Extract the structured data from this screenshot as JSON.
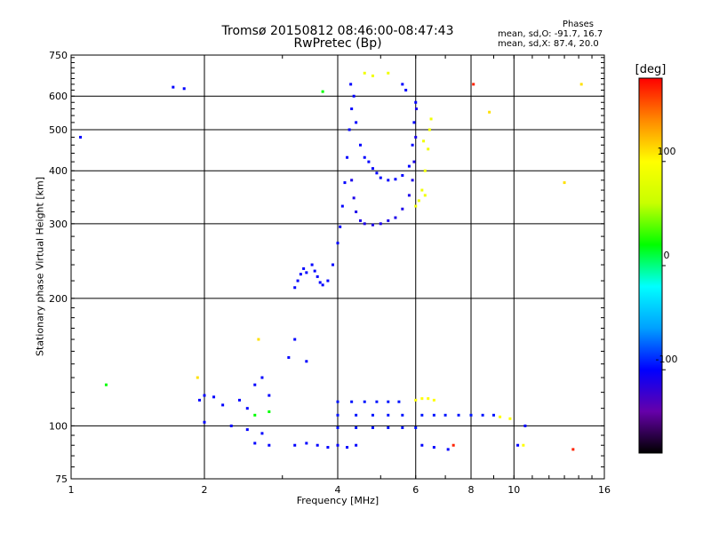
{
  "chart_data": {
    "type": "scatter",
    "title": "Tromsø 20150812 08:46:00-08:47:43",
    "subtitle": "RwPretec (Bp)",
    "stats": {
      "heading": "Phases",
      "o_line": "mean, sd,O: -91.7, 16.7",
      "x_line": "mean, sd,X:  87.4, 20.0"
    },
    "xlabel": "Frequency [MHz]",
    "ylabel": "Stationary phase Virtual Height [km]",
    "x_scale": "log",
    "y_scale": "log",
    "xlim": [
      1,
      16
    ],
    "ylim": [
      75,
      750
    ],
    "x_ticks": [
      1,
      2,
      4,
      6,
      8,
      10,
      16
    ],
    "y_ticks": [
      75,
      100,
      200,
      300,
      400,
      500,
      600,
      750
    ],
    "x_gridlines": [
      2,
      4,
      6,
      8,
      10
    ],
    "y_gridlines": [
      100,
      200,
      300,
      400,
      500,
      600
    ],
    "grid": true,
    "colorbar": {
      "label": "[deg]",
      "range": [
        -180,
        180
      ],
      "ticks": [
        100,
        0,
        -100
      ],
      "colors": [
        "#000000",
        "#6600aa",
        "#0000ff",
        "#00a0ff",
        "#00ffff",
        "#00ff00",
        "#c8ff00",
        "#ffff00",
        "#ff8800",
        "#ff0000"
      ]
    },
    "series": [
      {
        "phase": -100,
        "points": [
          [
            3.2,
            212
          ],
          [
            3.25,
            220
          ],
          [
            3.3,
            228
          ],
          [
            3.35,
            235
          ],
          [
            3.4,
            230
          ],
          [
            3.5,
            240
          ],
          [
            3.55,
            232
          ],
          [
            3.6,
            225
          ],
          [
            3.65,
            218
          ],
          [
            3.7,
            215
          ],
          [
            3.8,
            220
          ],
          [
            3.9,
            240
          ],
          [
            4.0,
            270
          ],
          [
            4.05,
            295
          ],
          [
            4.1,
            330
          ],
          [
            4.15,
            375
          ],
          [
            4.2,
            430
          ],
          [
            4.25,
            500
          ],
          [
            4.3,
            560
          ],
          [
            4.28,
            640
          ],
          [
            4.35,
            600
          ],
          [
            4.4,
            520
          ],
          [
            4.5,
            460
          ],
          [
            4.6,
            430
          ],
          [
            4.7,
            420
          ],
          [
            4.8,
            405
          ],
          [
            4.9,
            395
          ],
          [
            5.0,
            385
          ],
          [
            5.2,
            380
          ],
          [
            5.4,
            382
          ],
          [
            5.6,
            390
          ],
          [
            5.8,
            410
          ],
          [
            5.9,
            460
          ],
          [
            5.95,
            520
          ],
          [
            6.0,
            580
          ],
          [
            5.7,
            620
          ],
          [
            5.6,
            640
          ]
        ]
      },
      {
        "phase": -110,
        "points": [
          [
            4.3,
            380
          ],
          [
            4.35,
            345
          ],
          [
            4.4,
            320
          ],
          [
            4.5,
            305
          ],
          [
            4.6,
            300
          ],
          [
            4.8,
            298
          ],
          [
            5.0,
            300
          ],
          [
            5.2,
            305
          ],
          [
            5.4,
            310
          ],
          [
            5.6,
            325
          ],
          [
            5.8,
            350
          ],
          [
            5.9,
            380
          ],
          [
            5.95,
            420
          ],
          [
            6.0,
            480
          ],
          [
            6.02,
            560
          ]
        ]
      },
      {
        "phase": 90,
        "points": [
          [
            6.0,
            330
          ],
          [
            6.1,
            340
          ],
          [
            6.2,
            360
          ],
          [
            6.3,
            400
          ],
          [
            6.4,
            450
          ],
          [
            6.45,
            500
          ],
          [
            6.5,
            530
          ],
          [
            6.3,
            350
          ],
          [
            6.25,
            470
          ],
          [
            4.6,
            680
          ],
          [
            4.8,
            670
          ],
          [
            5.2,
            680
          ]
        ]
      },
      {
        "phase": -100,
        "points": [
          [
            1.95,
            115
          ],
          [
            2.0,
            118
          ],
          [
            2.1,
            117
          ],
          [
            2.2,
            112
          ],
          [
            2.4,
            115
          ],
          [
            2.5,
            110
          ],
          [
            2.6,
            125
          ],
          [
            2.7,
            130
          ],
          [
            2.8,
            118
          ],
          [
            3.1,
            145
          ],
          [
            3.2,
            160
          ],
          [
            3.4,
            142
          ],
          [
            2.0,
            102
          ],
          [
            2.3,
            100
          ],
          [
            2.5,
            98
          ],
          [
            2.7,
            96
          ]
        ]
      },
      {
        "phase": -100,
        "points": [
          [
            3.2,
            90
          ],
          [
            3.4,
            91
          ],
          [
            3.6,
            90
          ],
          [
            3.8,
            89
          ],
          [
            4.0,
            90
          ],
          [
            4.2,
            89
          ],
          [
            4.4,
            90
          ],
          [
            2.8,
            90
          ],
          [
            2.6,
            91
          ]
        ]
      },
      {
        "phase": -95,
        "points": [
          [
            4.0,
            114
          ],
          [
            4.3,
            114
          ],
          [
            4.6,
            114
          ],
          [
            4.9,
            114
          ],
          [
            5.2,
            114
          ],
          [
            5.5,
            114
          ],
          [
            4.0,
            106
          ],
          [
            4.4,
            106
          ],
          [
            4.8,
            106
          ],
          [
            5.2,
            106
          ],
          [
            5.6,
            106
          ],
          [
            6.2,
            106
          ],
          [
            6.6,
            106
          ],
          [
            7.0,
            106
          ],
          [
            7.5,
            106
          ],
          [
            8.0,
            106
          ],
          [
            8.5,
            106
          ],
          [
            9.0,
            106
          ],
          [
            4.0,
            99
          ],
          [
            4.4,
            99
          ],
          [
            4.8,
            99
          ],
          [
            5.2,
            99
          ],
          [
            5.6,
            99
          ],
          [
            6.0,
            99
          ]
        ]
      },
      {
        "phase": 100,
        "points": [
          [
            6.0,
            115
          ],
          [
            6.2,
            116
          ],
          [
            6.4,
            116
          ],
          [
            6.6,
            115
          ],
          [
            9.3,
            105
          ],
          [
            9.8,
            104
          ],
          [
            10.5,
            90
          ]
        ]
      },
      {
        "phase": -100,
        "points": [
          [
            1.05,
            480
          ],
          [
            1.7,
            630
          ],
          [
            1.8,
            625
          ],
          [
            10.2,
            90
          ],
          [
            10.6,
            100
          ],
          [
            6.2,
            90
          ],
          [
            6.6,
            89
          ],
          [
            7.1,
            88
          ]
        ]
      },
      {
        "phase": 20,
        "points": [
          [
            1.2,
            125
          ],
          [
            2.6,
            106
          ],
          [
            2.8,
            108
          ],
          [
            3.7,
            615
          ]
        ]
      },
      {
        "phase": 110,
        "points": [
          [
            1.93,
            130
          ],
          [
            2.65,
            160
          ],
          [
            8.8,
            550
          ],
          [
            14.2,
            640
          ],
          [
            13.0,
            375
          ]
        ]
      },
      {
        "phase": 170,
        "points": [
          [
            13.6,
            88
          ],
          [
            8.1,
            640
          ],
          [
            7.3,
            90
          ]
        ]
      }
    ]
  }
}
